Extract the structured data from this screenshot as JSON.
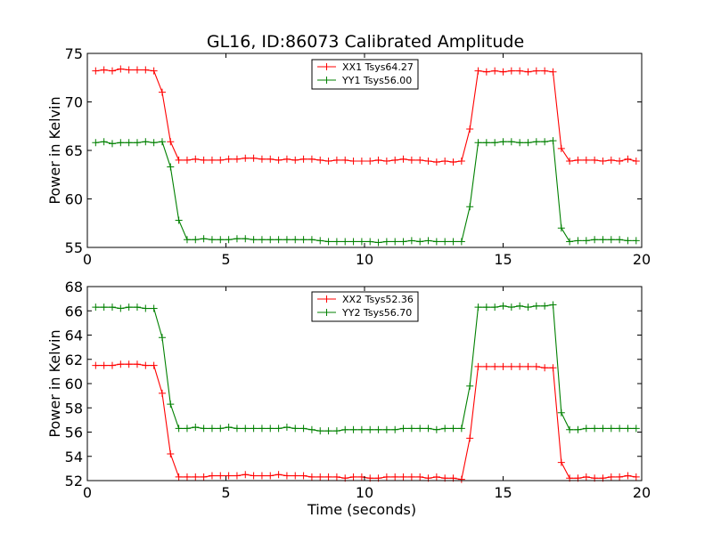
{
  "title": "GL16, ID:86073 Calibrated Amplitude",
  "colors": {
    "xx": "#ff0000",
    "yy": "#008000"
  },
  "chart_data": [
    {
      "type": "line",
      "ylabel": "Power in Kelvin",
      "xlabel": "",
      "xlim": [
        0,
        20
      ],
      "ylim": [
        55,
        75
      ],
      "xticks": [
        "0",
        "5",
        "10",
        "15",
        "20"
      ],
      "yticks": [
        "55",
        "60",
        "65",
        "70",
        "75"
      ],
      "legend": "top-center",
      "grid": false,
      "x": [
        0.3,
        0.6,
        0.9,
        1.2,
        1.5,
        1.8,
        2.1,
        2.4,
        2.7,
        3.0,
        3.3,
        3.6,
        3.9,
        4.2,
        4.5,
        4.8,
        5.1,
        5.4,
        5.7,
        6.0,
        6.3,
        6.6,
        6.9,
        7.2,
        7.5,
        7.8,
        8.1,
        8.4,
        8.7,
        9.0,
        9.3,
        9.6,
        9.9,
        10.2,
        10.5,
        10.8,
        11.1,
        11.4,
        11.7,
        12.0,
        12.3,
        12.6,
        12.9,
        13.2,
        13.5,
        13.8,
        14.1,
        14.4,
        14.7,
        15.0,
        15.3,
        15.6,
        15.9,
        16.2,
        16.5,
        16.8,
        17.1,
        17.4,
        17.7,
        18.0,
        18.3,
        18.6,
        18.9,
        19.2,
        19.5,
        19.8
      ],
      "series": [
        {
          "name": "XX1 Tsys64.27",
          "color": "#ff0000",
          "values": [
            73.2,
            73.3,
            73.2,
            73.4,
            73.3,
            73.3,
            73.3,
            73.2,
            71.0,
            65.9,
            64.0,
            64.0,
            64.1,
            64.0,
            64.0,
            64.0,
            64.1,
            64.1,
            64.2,
            64.2,
            64.1,
            64.1,
            64.0,
            64.1,
            64.0,
            64.1,
            64.1,
            64.0,
            63.9,
            64.0,
            64.0,
            63.9,
            63.9,
            63.9,
            64.0,
            63.9,
            64.0,
            64.1,
            64.0,
            64.0,
            63.9,
            63.8,
            63.9,
            63.8,
            63.9,
            67.2,
            73.2,
            73.1,
            73.2,
            73.1,
            73.2,
            73.2,
            73.1,
            73.2,
            73.2,
            73.1,
            65.2,
            63.9,
            64.0,
            64.0,
            64.0,
            63.9,
            64.0,
            63.9,
            64.1,
            63.9
          ]
        },
        {
          "name": "YY1 Tsys56.00",
          "color": "#008000",
          "values": [
            65.8,
            65.9,
            65.7,
            65.8,
            65.8,
            65.8,
            65.9,
            65.8,
            65.9,
            63.3,
            57.8,
            55.8,
            55.8,
            55.9,
            55.8,
            55.8,
            55.8,
            55.9,
            55.9,
            55.8,
            55.8,
            55.8,
            55.8,
            55.8,
            55.8,
            55.8,
            55.8,
            55.7,
            55.6,
            55.6,
            55.6,
            55.6,
            55.6,
            55.6,
            55.5,
            55.6,
            55.6,
            55.6,
            55.7,
            55.6,
            55.7,
            55.6,
            55.6,
            55.6,
            55.6,
            59.2,
            65.8,
            65.8,
            65.8,
            65.9,
            65.9,
            65.8,
            65.8,
            65.9,
            65.9,
            66.0,
            57.0,
            55.6,
            55.7,
            55.7,
            55.8,
            55.8,
            55.8,
            55.8,
            55.7,
            55.7
          ]
        }
      ]
    },
    {
      "type": "line",
      "ylabel": "Power in Kelvin",
      "xlabel": "Time (seconds)",
      "xlim": [
        0,
        20
      ],
      "ylim": [
        52,
        68
      ],
      "xticks": [
        "0",
        "5",
        "10",
        "15",
        "20"
      ],
      "yticks": [
        "52",
        "54",
        "56",
        "58",
        "60",
        "62",
        "64",
        "66",
        "68"
      ],
      "legend": "top-center",
      "grid": false,
      "x": [
        0.3,
        0.6,
        0.9,
        1.2,
        1.5,
        1.8,
        2.1,
        2.4,
        2.7,
        3.0,
        3.3,
        3.6,
        3.9,
        4.2,
        4.5,
        4.8,
        5.1,
        5.4,
        5.7,
        6.0,
        6.3,
        6.6,
        6.9,
        7.2,
        7.5,
        7.8,
        8.1,
        8.4,
        8.7,
        9.0,
        9.3,
        9.6,
        9.9,
        10.2,
        10.5,
        10.8,
        11.1,
        11.4,
        11.7,
        12.0,
        12.3,
        12.6,
        12.9,
        13.2,
        13.5,
        13.8,
        14.1,
        14.4,
        14.7,
        15.0,
        15.3,
        15.6,
        15.9,
        16.2,
        16.5,
        16.8,
        17.1,
        17.4,
        17.7,
        18.0,
        18.3,
        18.6,
        18.9,
        19.2,
        19.5,
        19.8
      ],
      "series": [
        {
          "name": "XX2 Tsys52.36",
          "color": "#ff0000",
          "values": [
            61.5,
            61.5,
            61.5,
            61.6,
            61.6,
            61.6,
            61.5,
            61.5,
            59.2,
            54.2,
            52.3,
            52.3,
            52.3,
            52.3,
            52.4,
            52.4,
            52.4,
            52.4,
            52.5,
            52.4,
            52.4,
            52.4,
            52.5,
            52.4,
            52.4,
            52.4,
            52.3,
            52.3,
            52.3,
            52.3,
            52.2,
            52.3,
            52.3,
            52.2,
            52.2,
            52.3,
            52.3,
            52.3,
            52.3,
            52.3,
            52.2,
            52.3,
            52.2,
            52.2,
            52.1,
            55.5,
            61.4,
            61.4,
            61.4,
            61.4,
            61.4,
            61.4,
            61.4,
            61.4,
            61.3,
            61.3,
            53.5,
            52.2,
            52.2,
            52.3,
            52.2,
            52.2,
            52.3,
            52.3,
            52.4,
            52.3
          ]
        },
        {
          "name": "YY2 Tsys56.70",
          "color": "#008000",
          "values": [
            66.3,
            66.3,
            66.3,
            66.2,
            66.3,
            66.3,
            66.2,
            66.2,
            63.8,
            58.3,
            56.3,
            56.3,
            56.4,
            56.3,
            56.3,
            56.3,
            56.4,
            56.3,
            56.3,
            56.3,
            56.3,
            56.3,
            56.3,
            56.4,
            56.3,
            56.3,
            56.2,
            56.1,
            56.1,
            56.1,
            56.2,
            56.2,
            56.2,
            56.2,
            56.2,
            56.2,
            56.2,
            56.3,
            56.3,
            56.3,
            56.3,
            56.2,
            56.3,
            56.3,
            56.3,
            59.8,
            66.3,
            66.3,
            66.3,
            66.4,
            66.3,
            66.4,
            66.3,
            66.4,
            66.4,
            66.5,
            57.6,
            56.2,
            56.2,
            56.3,
            56.3,
            56.3,
            56.3,
            56.3,
            56.3,
            56.3
          ]
        }
      ]
    }
  ]
}
